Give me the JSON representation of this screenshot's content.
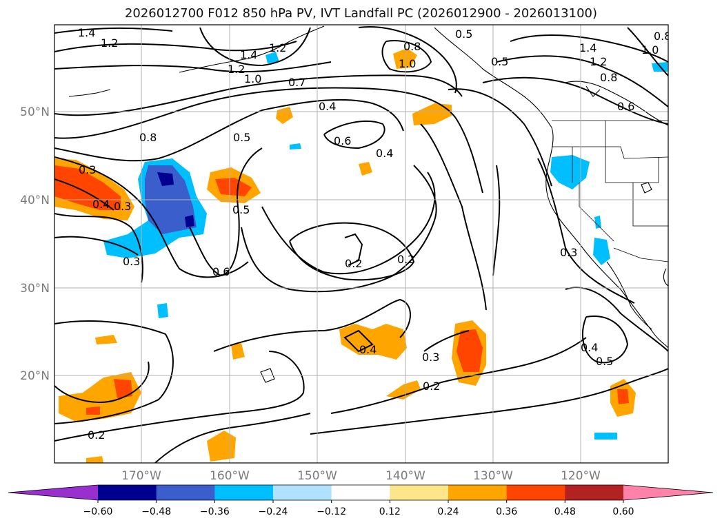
{
  "title": "2026012700 F012 850 hPa PV, IVT Landfall PC (2026012900 - 2026013100)",
  "lat_ticks": [
    "50°N",
    "40°N",
    "30°N",
    "20°N"
  ],
  "lon_ticks": [
    "170°W",
    "160°W",
    "150°W",
    "140°W",
    "130°W",
    "120°W"
  ],
  "contour_labels": [
    "1.4",
    "1.2",
    "1.2",
    "1.4",
    "1.2",
    "1.0",
    "0.7",
    "0.4",
    "0.5",
    "0.6",
    "0.4",
    "0.8",
    "0.8",
    "0.3",
    "0.4",
    "0.3",
    "0.3",
    "0.5",
    "0.6",
    "0.2",
    "0.2",
    "0.4",
    "0.3",
    "0.2",
    "0.3",
    "0.4",
    "0.5",
    "0.2",
    "1.0",
    "0.5",
    "1.4",
    "1.2",
    "1.0",
    "0.8",
    "0.6",
    "0.5",
    "0.8"
  ],
  "colorbar": {
    "colors": [
      "#9a2fd0",
      "#000090",
      "#3a5fcd",
      "#00bfff",
      "#b0e2ff",
      "#ffffff",
      "#fde68a",
      "#ffa500",
      "#ff4500",
      "#b22222",
      "#ff82ab"
    ],
    "labels": [
      "−0.60",
      "−0.48",
      "−0.36",
      "−0.24",
      "−0.12",
      "0.12",
      "0.24",
      "0.36",
      "0.48",
      "0.60"
    ]
  }
}
